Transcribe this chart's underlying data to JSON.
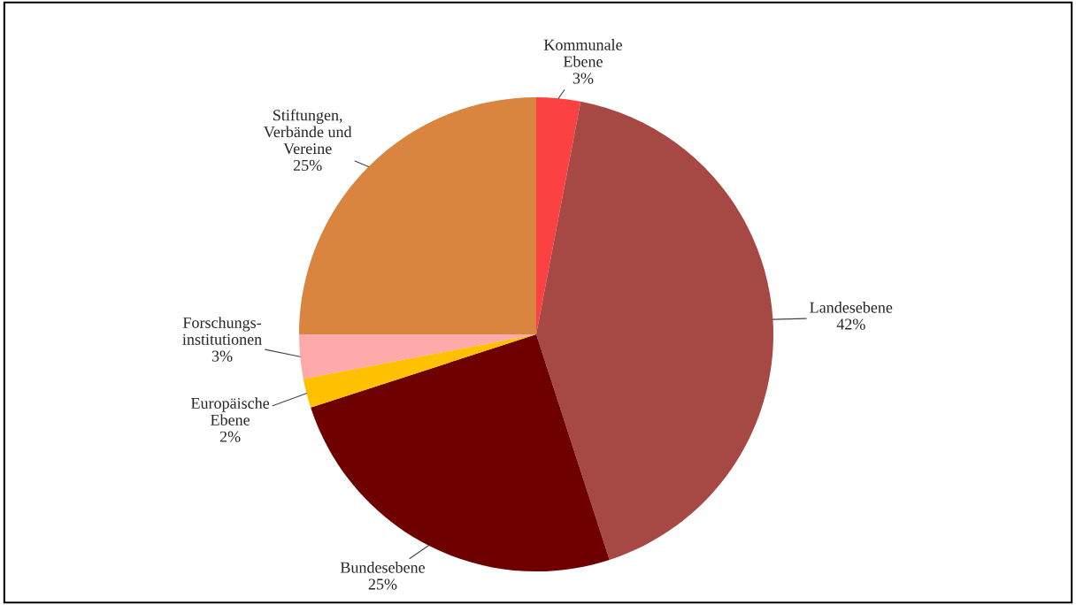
{
  "chart_data": {
    "type": "pie",
    "categories": [
      "Kommunale\nEbene",
      "Landesebene",
      "Bundesebene",
      "Europäische\nEbene",
      "Forschungs-\ninstitutionen",
      "Stiftungen,\nVerbände und\nVereine"
    ],
    "values": [
      3,
      42,
      25,
      2,
      3,
      25
    ],
    "value_labels": [
      "3%",
      "42%",
      "25%",
      "2%",
      "3%",
      "25%"
    ],
    "colors": [
      "#fc4143",
      "#a64844",
      "#6e0000",
      "#ffc000",
      "#ffaaaa",
      "#d9843f"
    ],
    "legend": false
  }
}
